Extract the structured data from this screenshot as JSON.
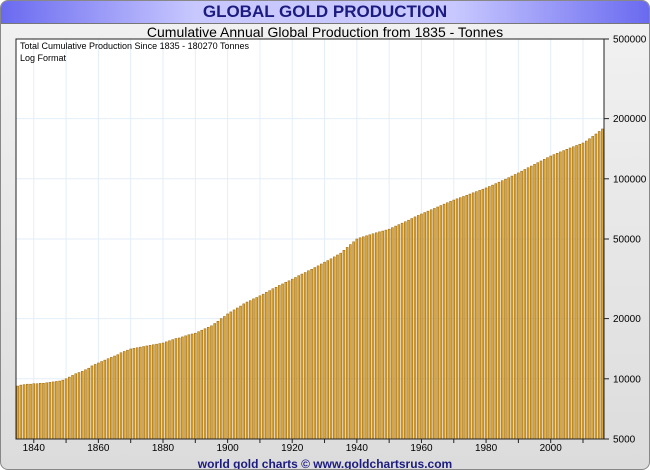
{
  "header": {
    "title": "GLOBAL GOLD PRODUCTION"
  },
  "footer": {
    "credit": "world gold charts © www.goldchartsrus.com"
  },
  "chart_data": {
    "type": "bar",
    "title": "Cumulative Annual Global Production from 1835 - Tonnes",
    "annotations": [
      "Total Cumulative Production Since 1835 - 180270  Tonnes",
      "Log Format"
    ],
    "x_start": 1835,
    "x_end": 2016,
    "xlim": [
      1835,
      2016
    ],
    "x_ticks": [
      1840,
      1860,
      1880,
      1900,
      1920,
      1940,
      1960,
      1980,
      2000
    ],
    "y_scale": "log",
    "ylim": [
      5000,
      500000
    ],
    "y_ticks": [
      5000,
      10000,
      20000,
      50000,
      100000,
      200000,
      500000
    ],
    "y_axis_side": "right",
    "grid": true,
    "colors": {
      "bar_fill": "#d9a43a",
      "bar_edge": "#9a6400",
      "grid": "#e3eef8",
      "title": "#1c1c80"
    },
    "values": [
      9200,
      9300,
      9350,
      9400,
      9400,
      9450,
      9450,
      9500,
      9500,
      9550,
      9600,
      9650,
      9700,
      9750,
      9850,
      10000,
      10200,
      10400,
      10600,
      10750,
      10900,
      11100,
      11300,
      11600,
      11800,
      12000,
      12200,
      12400,
      12600,
      12800,
      13000,
      13200,
      13500,
      13700,
      13900,
      14100,
      14200,
      14300,
      14400,
      14500,
      14600,
      14700,
      14800,
      14900,
      15000,
      15100,
      15300,
      15500,
      15700,
      15900,
      16000,
      16200,
      16400,
      16600,
      16750,
      16900,
      17200,
      17500,
      17800,
      18100,
      18400,
      18900,
      19400,
      20000,
      20500,
      21100,
      21600,
      22100,
      22600,
      23100,
      23700,
      24200,
      24600,
      25100,
      25500,
      26000,
      26500,
      27100,
      27600,
      28200,
      28700,
      29300,
      29800,
      30400,
      30900,
      31500,
      32100,
      32800,
      33400,
      34000,
      34700,
      35300,
      36000,
      36700,
      37500,
      38300,
      39000,
      39800,
      40700,
      41600,
      42500,
      43900,
      45400,
      46900,
      48400,
      50000,
      50700,
      51300,
      51900,
      52500,
      53100,
      53700,
      54300,
      54800,
      55400,
      56000,
      57000,
      58000,
      59000,
      60000,
      61000,
      62100,
      63300,
      64500,
      65600,
      66700,
      67800,
      68900,
      70000,
      71100,
      72300,
      73500,
      74700,
      75900,
      77100,
      78300,
      79400,
      80500,
      81600,
      82700,
      83900,
      85100,
      86300,
      87500,
      88700,
      90000,
      91500,
      93000,
      94600,
      96200,
      97900,
      99600,
      101300,
      103200,
      105100,
      107000,
      109200,
      111400,
      113600,
      115800,
      118100,
      120400,
      122800,
      125200,
      127600,
      130000,
      132100,
      134200,
      136300,
      138400,
      140500,
      142600,
      144700,
      146800,
      148900,
      151000,
      154500,
      158500,
      163000,
      167500,
      172500,
      177500
    ]
  }
}
